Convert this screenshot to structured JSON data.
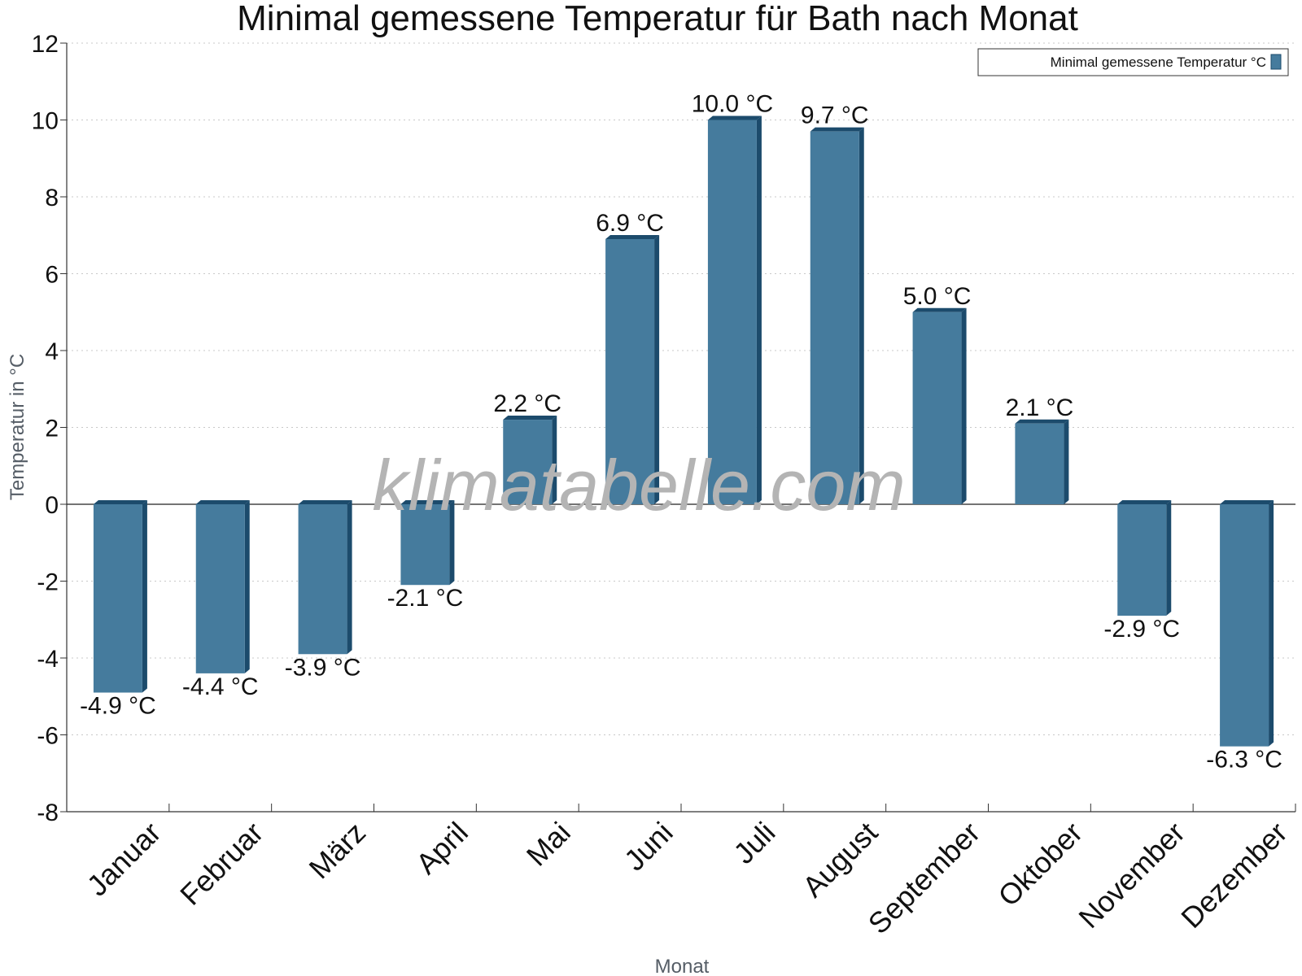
{
  "chart_data": {
    "type": "bar",
    "title": "Minimal gemessene Temperatur für Bath nach Monat",
    "xlabel": "Monat",
    "ylabel": "Temperatur in °C",
    "categories": [
      "Januar",
      "Februar",
      "März",
      "April",
      "Mai",
      "Juni",
      "Juli",
      "August",
      "September",
      "Oktober",
      "November",
      "Dezember"
    ],
    "series": [
      {
        "name": "Minimal gemessene Temperatur °C",
        "values": [
          -4.9,
          -4.4,
          -3.9,
          -2.1,
          2.2,
          6.9,
          10.0,
          9.7,
          5.0,
          2.1,
          -2.9,
          -6.3
        ],
        "color": "#457b9d",
        "side_color": "#1c4b6c"
      }
    ],
    "value_labels": [
      "-4.9 °C",
      "-4.4 °C",
      "-3.9 °C",
      "-2.1 °C",
      "2.2 °C",
      "6.9 °C",
      "10.0 °C",
      "9.7 °C",
      "5.0 °C",
      "2.1 °C",
      "-2.9 °C",
      "-6.3 °C"
    ],
    "ylim": [
      -8,
      12
    ],
    "yticks": [
      -8,
      -6,
      -4,
      -2,
      0,
      2,
      4,
      6,
      8,
      10,
      12
    ],
    "grid": true,
    "legend_position": "top-right",
    "watermark": "klimatabelle.com"
  }
}
